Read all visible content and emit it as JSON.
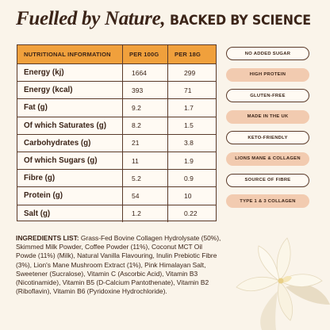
{
  "headline": {
    "part1": "Fuelled by Nature,",
    "part2": "BACKED BY SCIENCE"
  },
  "table": {
    "headers": [
      "NUTRITIONAL INFORMATION",
      "PER 100G",
      "PER 18G"
    ],
    "rows": [
      {
        "label": "Energy (kj)",
        "per100": "1664",
        "per18": "299"
      },
      {
        "label": "Energy (kcal)",
        "per100": "393",
        "per18": "71"
      },
      {
        "label": "Fat (g)",
        "per100": "9.2",
        "per18": "1.7"
      },
      {
        "label": "Of which Saturates (g)",
        "per100": "8.2",
        "per18": "1.5"
      },
      {
        "label": "Carbohydrates (g)",
        "per100": "21",
        "per18": "3.8"
      },
      {
        "label": "Of which Sugars (g)",
        "per100": "11",
        "per18": "1.9"
      },
      {
        "label": "Fibre (g)",
        "per100": "5.2",
        "per18": "0.9"
      },
      {
        "label": "Protein (g)",
        "per100": "54",
        "per18": "10"
      },
      {
        "label": "Salt (g)",
        "per100": "1.2",
        "per18": "0.22"
      }
    ]
  },
  "badges": [
    {
      "label": "NO ADDED SUGAR",
      "style": "outline"
    },
    {
      "label": "HIGH PROTEIN",
      "style": "filled"
    },
    {
      "label": "GLUTEN-FREE",
      "style": "outline"
    },
    {
      "label": "MADE IN THE UK",
      "style": "filled"
    },
    {
      "label": "KETO-FRIENDLY",
      "style": "outline"
    },
    {
      "label": "LIONS MANE & COLLAGEN",
      "style": "filled"
    },
    {
      "label": "SOURCE OF FIBRE",
      "style": "outline"
    },
    {
      "label": "TYPE 1 & 3 COLLAGEN",
      "style": "filled"
    }
  ],
  "ingredients": {
    "label": "INGREDIENTS LIST:",
    "text": "Grass-Fed Bovine Collagen Hydrolysate (50%), Skimmed Milk Powder, Coffee Powder (11%), Coconut MCT Oil Powde (11%) (Milk), Natural Vanilla Flavouring, Inulin Prebiotic Fibre (3%), Lion's Mane Mushroom Extract (1%), Pink Himalayan Salt, Sweetener (Sucralose), Vitamin C (Ascorbic Acid), Vitamin B3 (Nicotinamide), Vitamin B5 (D-Calcium Pantothenate), Vitamin B2 (Riboflavin), Vitamin B6 (Pyridoxine Hydrochloride)."
  },
  "colors": {
    "background": "#faf4ea",
    "text": "#3b2418",
    "table_header": "#f0a03c",
    "badge_fill": "#f2cbb0"
  },
  "icons": {
    "flower": "vanilla-flower-icon"
  }
}
